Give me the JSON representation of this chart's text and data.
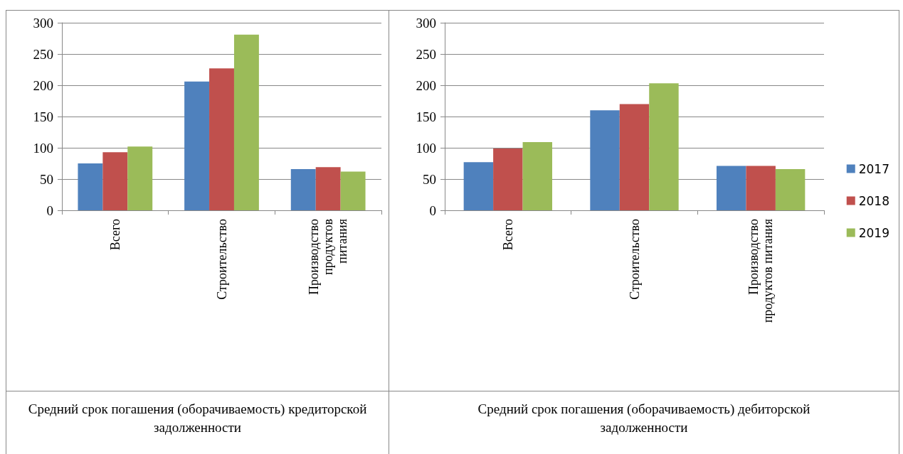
{
  "chart_data": [
    {
      "type": "bar",
      "title": "Средний срок погашения (оборачиваемость) кредиторской задолженности",
      "categories": [
        "Всего",
        "Строительство",
        "Производство\nпродуктов\nпитания"
      ],
      "series": [
        {
          "color": "#4f81bd",
          "values": [
            75,
            206,
            66
          ]
        },
        {
          "color": "#c0504d",
          "values": [
            93,
            227,
            69
          ]
        },
        {
          "color": "#9bbb59",
          "values": [
            102,
            281,
            62
          ]
        }
      ],
      "ylim": [
        0,
        300
      ],
      "yticks": [
        0,
        50,
        100,
        150,
        200,
        250,
        300
      ],
      "grid": "y",
      "legend": false
    },
    {
      "type": "bar",
      "title": "Средний срок погашения (оборачиваемость) дебиторской задолженности",
      "categories": [
        "Всего",
        "Строительство",
        "Производство\nпродуктов питания"
      ],
      "series": [
        {
          "name": "2017",
          "color": "#4f81bd",
          "values": [
            77,
            160,
            71
          ]
        },
        {
          "name": "2018",
          "color": "#c0504d",
          "values": [
            99,
            170,
            71
          ]
        },
        {
          "name": "2019",
          "color": "#9bbb59",
          "values": [
            109,
            203,
            66
          ]
        }
      ],
      "ylim": [
        0,
        300
      ],
      "yticks": [
        0,
        50,
        100,
        150,
        200,
        250,
        300
      ],
      "grid": "y",
      "legend": "right"
    }
  ]
}
